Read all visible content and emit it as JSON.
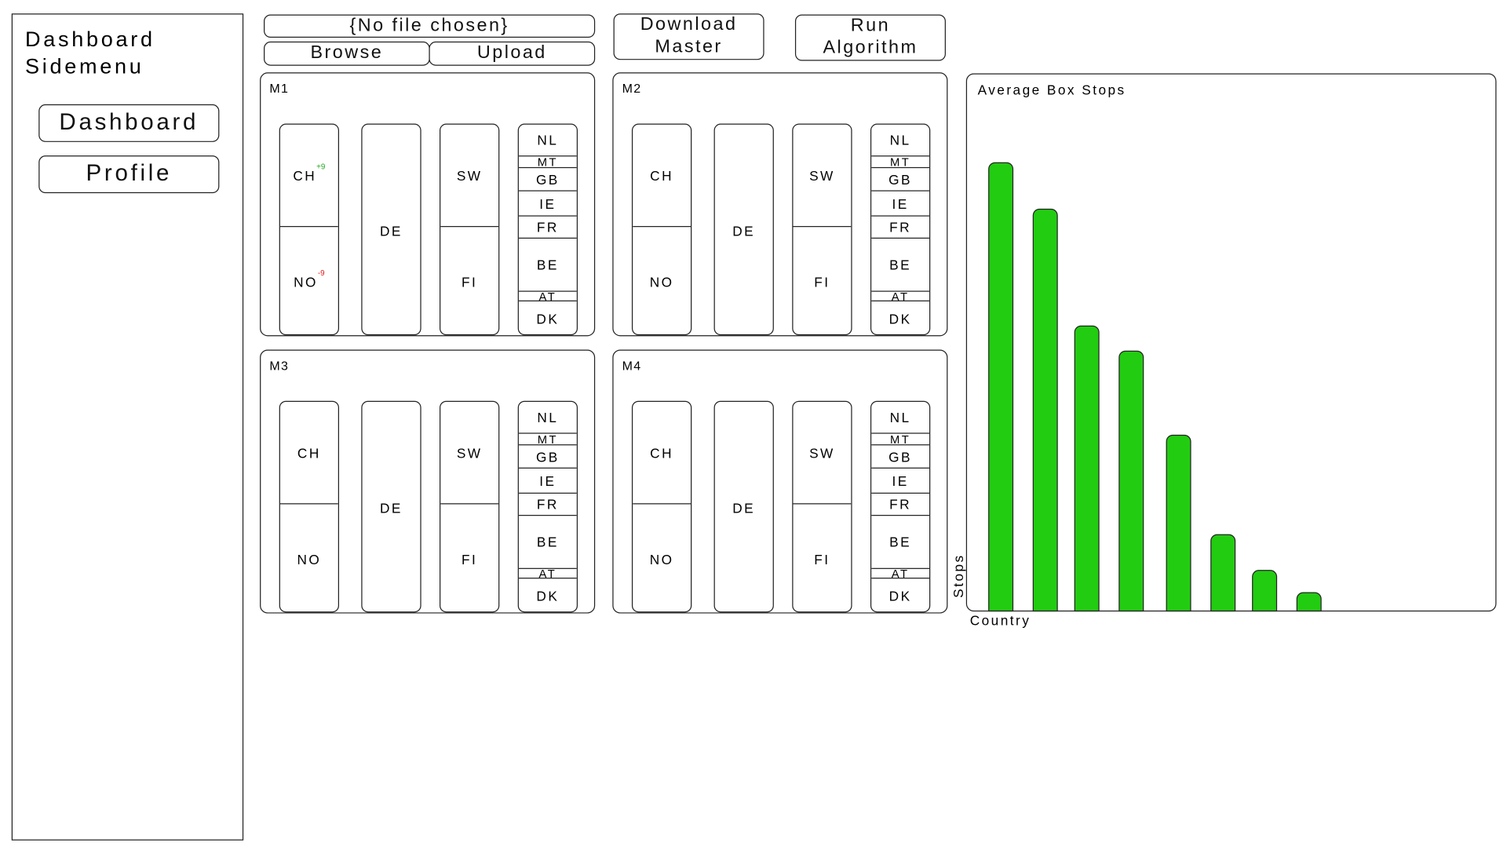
{
  "sidebar": {
    "title": "Dashboard Sidemenu",
    "buttons": [
      "Dashboard",
      "Profile"
    ]
  },
  "toolbar": {
    "file_status": "{No file chosen}",
    "browse": "Browse",
    "upload": "Upload",
    "download": "Download Master",
    "run": "Run Algorithm"
  },
  "machines": [
    {
      "name": "M1",
      "columns": [
        [
          {
            "label": "CH",
            "delta": "+9"
          },
          {
            "label": "NO",
            "delta": "-9"
          }
        ],
        [
          {
            "label": "DE"
          }
        ],
        [
          {
            "label": "SW"
          },
          {
            "label": "FI"
          }
        ],
        [
          {
            "label": "NL"
          },
          {
            "label": "MT"
          },
          {
            "label": "GB"
          },
          {
            "label": "IE"
          },
          {
            "label": "FR"
          },
          {
            "label": "BE"
          },
          {
            "label": "AT"
          },
          {
            "label": "DK"
          }
        ]
      ]
    },
    {
      "name": "M2",
      "columns": [
        [
          {
            "label": "CH"
          },
          {
            "label": "NO"
          }
        ],
        [
          {
            "label": "DE"
          }
        ],
        [
          {
            "label": "SW"
          },
          {
            "label": "FI"
          }
        ],
        [
          {
            "label": "NL"
          },
          {
            "label": "MT"
          },
          {
            "label": "GB"
          },
          {
            "label": "IE"
          },
          {
            "label": "FR"
          },
          {
            "label": "BE"
          },
          {
            "label": "AT"
          },
          {
            "label": "DK"
          }
        ]
      ]
    },
    {
      "name": "M3",
      "columns": [
        [
          {
            "label": "CH"
          },
          {
            "label": "NO"
          }
        ],
        [
          {
            "label": "DE"
          }
        ],
        [
          {
            "label": "SW"
          },
          {
            "label": "FI"
          }
        ],
        [
          {
            "label": "NL"
          },
          {
            "label": "MT"
          },
          {
            "label": "GB"
          },
          {
            "label": "IE"
          },
          {
            "label": "FR"
          },
          {
            "label": "BE"
          },
          {
            "label": "AT"
          },
          {
            "label": "DK"
          }
        ]
      ]
    },
    {
      "name": "M4",
      "columns": [
        [
          {
            "label": "CH"
          },
          {
            "label": "NO"
          }
        ],
        [
          {
            "label": "DE"
          }
        ],
        [
          {
            "label": "SW"
          },
          {
            "label": "FI"
          }
        ],
        [
          {
            "label": "NL"
          },
          {
            "label": "MT"
          },
          {
            "label": "GB"
          },
          {
            "label": "IE"
          },
          {
            "label": "FR"
          },
          {
            "label": "BE"
          },
          {
            "label": "AT"
          },
          {
            "label": "DK"
          }
        ]
      ]
    }
  ],
  "chart_data": {
    "type": "bar",
    "title": "Average Box Stops",
    "ylabel": "Stops",
    "xlabel": "Country",
    "values": [
      465,
      417,
      296,
      270,
      183,
      80,
      43,
      20
    ],
    "color": "#22cc11"
  }
}
